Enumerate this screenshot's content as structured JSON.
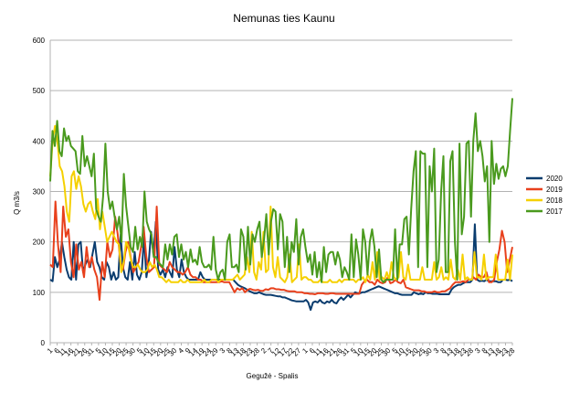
{
  "chart_data": {
    "type": "line",
    "title": "Nemunas ties Kaunu",
    "xlabel": "Gegužė - Spalis",
    "ylabel": "Q m3/s",
    "ylim": [
      0,
      600
    ],
    "yticks": [
      0,
      100,
      200,
      300,
      400,
      500,
      600
    ],
    "grid": true,
    "legend_position": "right",
    "x_tick_labels": [
      "1",
      "6",
      "11",
      "16",
      "21",
      "26",
      "31",
      "5",
      "10",
      "15",
      "20",
      "25",
      "30",
      "5",
      "10",
      "15",
      "20",
      "25",
      "30",
      "4",
      "9",
      "14",
      "19",
      "24",
      "29",
      "3",
      "8",
      "13",
      "18",
      "23",
      "28",
      "2",
      "7",
      "12",
      "17",
      "22",
      "27",
      "1",
      "6",
      "11",
      "16",
      "21",
      "26",
      "31",
      "5",
      "10",
      "15",
      "20",
      "25",
      "30",
      "5",
      "10",
      "15",
      "20",
      "25",
      "30",
      "3",
      "8",
      "13",
      "18",
      "23",
      "28",
      "3",
      "8",
      "13",
      "18",
      "23",
      "28"
    ],
    "series": [
      {
        "name": "2020",
        "color": "#0a3c6e",
        "y": [
          125,
          122,
          170,
          150,
          165,
          200,
          170,
          145,
          130,
          125,
          200,
          125,
          195,
          200,
          140,
          155,
          165,
          150,
          175,
          200,
          160,
          150,
          130,
          125,
          160,
          150,
          125,
          140,
          125,
          130,
          215,
          150,
          130,
          125,
          160,
          125,
          180,
          135,
          125,
          140,
          210,
          130,
          160,
          220,
          175,
          240,
          145,
          135,
          145,
          130,
          150,
          140,
          130,
          190,
          145,
          130,
          165,
          140,
          130,
          125,
          125,
          125,
          125,
          125,
          140,
          130,
          125,
          125,
          125,
          125,
          125,
          125,
          125,
          125,
          125,
          125,
          125,
          125,
          125,
          120,
          115,
          112,
          110,
          108,
          105,
          102,
          100,
          98,
          98,
          100,
          98,
          96,
          95,
          95,
          95,
          94,
          93,
          92,
          92,
          90,
          90,
          88,
          86,
          84,
          83,
          82,
          82,
          82,
          82,
          85,
          80,
          65,
          80,
          82,
          80,
          85,
          80,
          78,
          82,
          80,
          85,
          80,
          78,
          85,
          90,
          85,
          90,
          95,
          90,
          95,
          100,
          98,
          98,
          100,
          100,
          102,
          104,
          106,
          108,
          110,
          112,
          110,
          108,
          106,
          104,
          102,
          100,
          98,
          98,
          96,
          95,
          95,
          95,
          95,
          95,
          100,
          98,
          96,
          98,
          96,
          100,
          98,
          98,
          97,
          97,
          97,
          96,
          96,
          96,
          96,
          96,
          105,
          110,
          113,
          115,
          115,
          118,
          120,
          120,
          120,
          125,
          235,
          125,
          122,
          123,
          122,
          125,
          122,
          122,
          122,
          122,
          120,
          120,
          125,
          125,
          124,
          125,
          122
        ]
      },
      {
        "name": "2019",
        "color": "#e8401c",
        "y": [
          155,
          150,
          280,
          195,
          140,
          270,
          210,
          225,
          160,
          130,
          195,
          145,
          160,
          130,
          190,
          150,
          170,
          145,
          130,
          85,
          160,
          130,
          200,
          170,
          185,
          250,
          215,
          160,
          145,
          180,
          200,
          170,
          140,
          150,
          160,
          190,
          230,
          170,
          140,
          145,
          150,
          270,
          155,
          150,
          145,
          140,
          160,
          150,
          145,
          140,
          140,
          135,
          140,
          150,
          135,
          130,
          130,
          125,
          125,
          120,
          120,
          120,
          120,
          120,
          120,
          120,
          122,
          120,
          120,
          120,
          110,
          100,
          108,
          105,
          108,
          100,
          105,
          107,
          105,
          104,
          105,
          103,
          103,
          106,
          105,
          108,
          108,
          106,
          106,
          105,
          105,
          103,
          102,
          102,
          102,
          100,
          100,
          100,
          98,
          98,
          97,
          97,
          96,
          98,
          98,
          98,
          97,
          97,
          98,
          98,
          97,
          97,
          97,
          97,
          97,
          97,
          97,
          97,
          97,
          97,
          115,
          122,
          125,
          120,
          120,
          115,
          125,
          120,
          118,
          120,
          130,
          118,
          120,
          125,
          120,
          118,
          125,
          110,
          108,
          106,
          104,
          104,
          104,
          102,
          102,
          100,
          100,
          100,
          102,
          100,
          100,
          102,
          102,
          105,
          108,
          115,
          120,
          120,
          120,
          122,
          120,
          125,
          125,
          130,
          125,
          135,
          130,
          130,
          140,
          120,
          120,
          125,
          160,
          185,
          222,
          200,
          140,
          165,
          190
        ]
      },
      {
        "name": "2018",
        "color": "#f5d000",
        "y": [
          330,
          400,
          430,
          400,
          350,
          340,
          310,
          260,
          240,
          330,
          340,
          305,
          330,
          310,
          275,
          260,
          275,
          280,
          260,
          245,
          285,
          225,
          260,
          230,
          200,
          210,
          220,
          210,
          200,
          195,
          140,
          160,
          200,
          190,
          165,
          150,
          150,
          155,
          145,
          140,
          140,
          145,
          160,
          150,
          155,
          145,
          130,
          130,
          125,
          120,
          125,
          120,
          120,
          120,
          120,
          125,
          120,
          120,
          125,
          120,
          120,
          120,
          120,
          120,
          120,
          125,
          120,
          120,
          125,
          125,
          125,
          120,
          125,
          125,
          125,
          125,
          125,
          125,
          130,
          135,
          125,
          130,
          135,
          170,
          140,
          220,
          140,
          125,
          160,
          145,
          220,
          140,
          145,
          270,
          150,
          130,
          170,
          130,
          125,
          120,
          130,
          175,
          120,
          125,
          130,
          195,
          125,
          130,
          130,
          125,
          125,
          120,
          120,
          120,
          125,
          120,
          120,
          120,
          125,
          120,
          120,
          120,
          125,
          120,
          125,
          125,
          125,
          125,
          125,
          120,
          125,
          125,
          130,
          120,
          135,
          125,
          160,
          125,
          180,
          125,
          130,
          125,
          140,
          125,
          160,
          130,
          125,
          130,
          180,
          130,
          125,
          155,
          125,
          125,
          125,
          125,
          125,
          150,
          125,
          125,
          125,
          125,
          160,
          125,
          130,
          150,
          125,
          130,
          125,
          165,
          130,
          125,
          145,
          125,
          175,
          125,
          130,
          125,
          125,
          180,
          130,
          130,
          125,
          175,
          125,
          130,
          130,
          130,
          175,
          125,
          125,
          125,
          125,
          165,
          125,
          175
        ]
      },
      {
        "name": "2017",
        "color": "#4a9a1e",
        "y": [
          320,
          420,
          390,
          440,
          380,
          370,
          425,
          400,
          410,
          390,
          385,
          380,
          340,
          335,
          410,
          350,
          370,
          350,
          330,
          375,
          265,
          250,
          240,
          290,
          395,
          300,
          265,
          280,
          250,
          225,
          250,
          200,
          335,
          270,
          230,
          190,
          180,
          230,
          185,
          210,
          190,
          300,
          240,
          225,
          215,
          170,
          170,
          160,
          155,
          150,
          195,
          165,
          195,
          175,
          210,
          215,
          170,
          195,
          165,
          180,
          150,
          185,
          160,
          165,
          155,
          190,
          160,
          150,
          150,
          155,
          145,
          210,
          145,
          125,
          140,
          145,
          125,
          200,
          215,
          150,
          150,
          155,
          140,
          225,
          210,
          145,
          230,
          155,
          215,
          200,
          225,
          240,
          170,
          205,
          255,
          175,
          240,
          265,
          260,
          185,
          255,
          240,
          150,
          210,
          140,
          200,
          180,
          245,
          155,
          210,
          225,
          190,
          160,
          175,
          135,
          180,
          130,
          160,
          120,
          190,
          140,
          175,
          180,
          180,
          155,
          180,
          165,
          130,
          150,
          140,
          125,
          215,
          130,
          205,
          175,
          125,
          225,
          200,
          135,
          200,
          225,
          190,
          130,
          185,
          125,
          120,
          125,
          125,
          125,
          125,
          225,
          125,
          195,
          195,
          245,
          250,
          175,
          265,
          340,
          380,
          150,
          380,
          375,
          375,
          150,
          350,
          300,
          385,
          140,
          165,
          300,
          370,
          140,
          140,
          360,
          380,
          200,
          125,
          395,
          215,
          250,
          395,
          400,
          250,
          400,
          455,
          380,
          400,
          370,
          320,
          350,
          200,
          400,
          315,
          355,
          325,
          345,
          350,
          330,
          350,
          420,
          485
        ]
      }
    ]
  }
}
